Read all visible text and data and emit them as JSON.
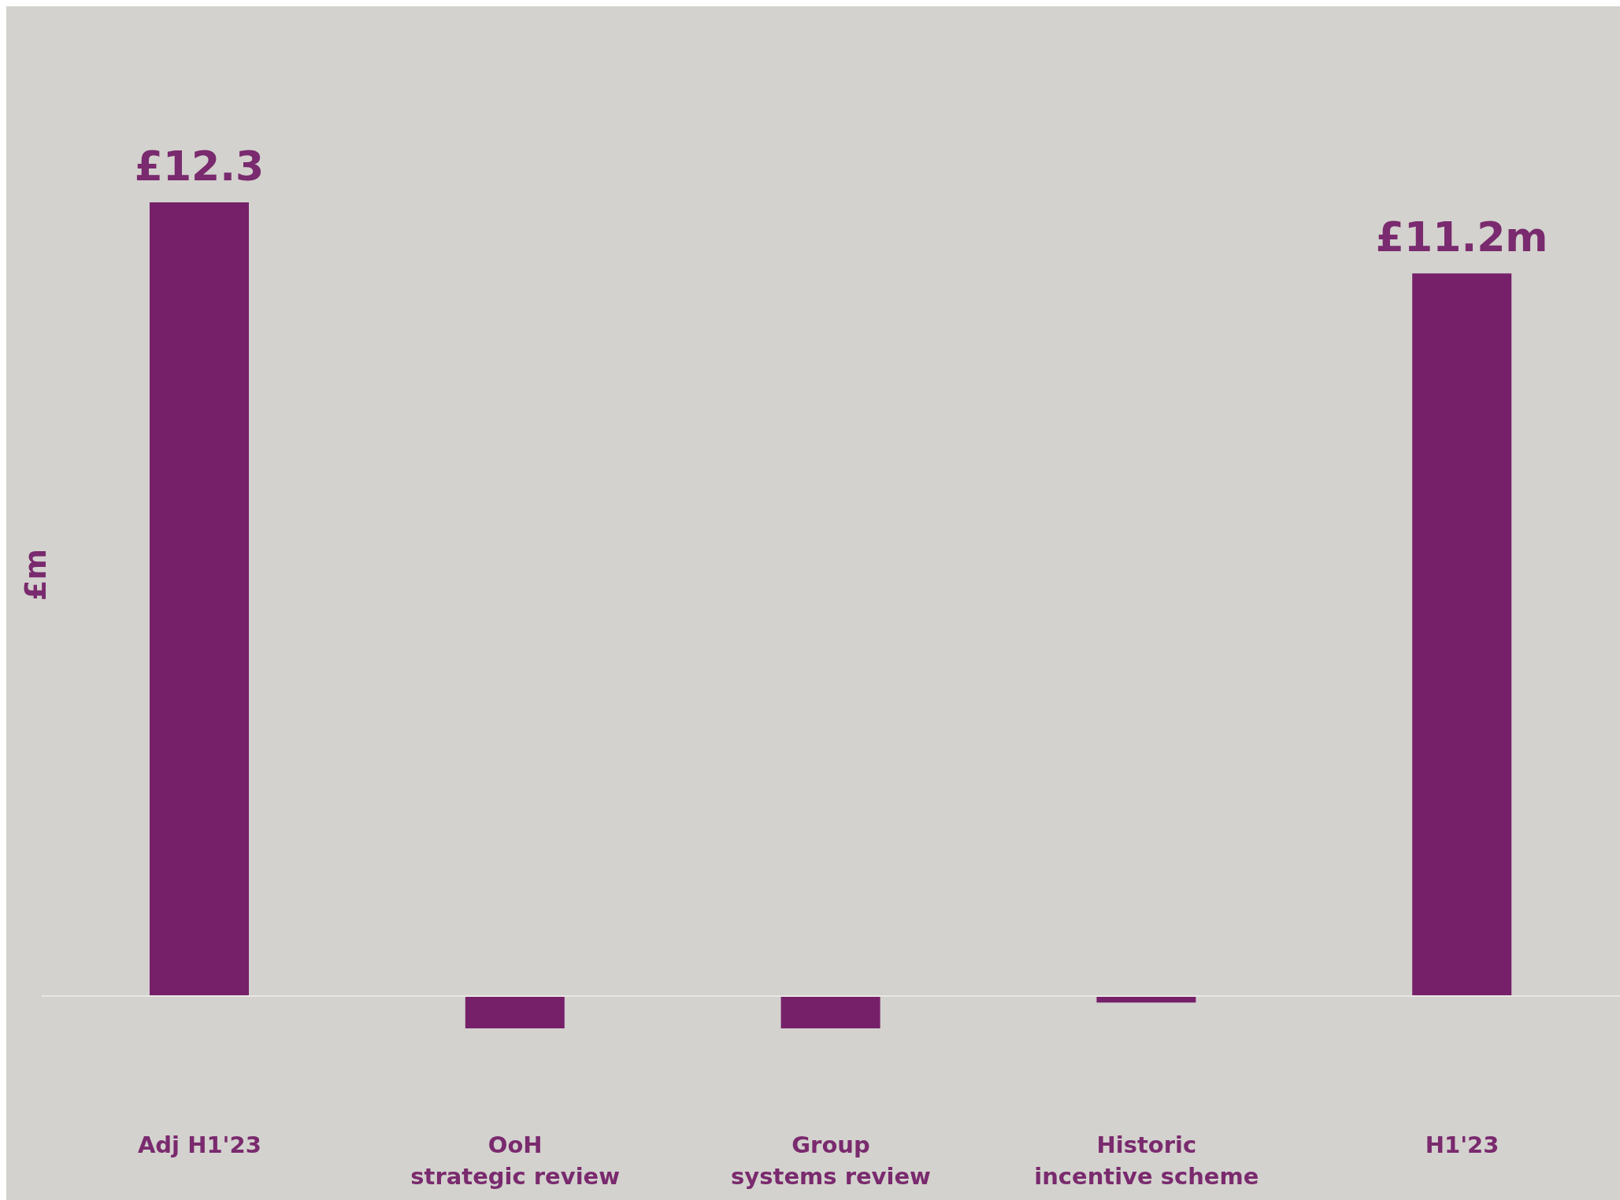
{
  "chart_data": {
    "type": "bar",
    "ylabel": "£m",
    "categories": [
      "Adj H1'23",
      "OoH\nstrategic review",
      "Group\nsystems review",
      "Historic\nincentive scheme",
      "H1'23"
    ],
    "values": [
      12.3,
      -0.5,
      -0.5,
      -0.1,
      11.2
    ],
    "value_labels": [
      "£12.3",
      null,
      null,
      null,
      "£11.2m"
    ],
    "color": "#76206a",
    "ref_lines": [
      {
        "axis": "y",
        "value": 0,
        "color": "#e9e7e3"
      }
    ],
    "grid": false,
    "legend": false
  }
}
